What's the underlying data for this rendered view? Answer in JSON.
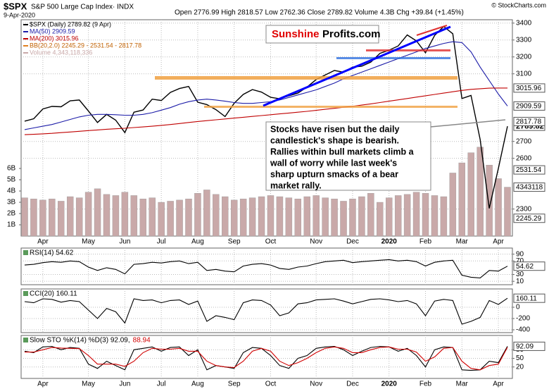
{
  "header": {
    "symbol": "$SPX",
    "name": "S&P 500 Large Cap Index· INDX",
    "date": "9-Apr-2020",
    "quote": "Open 2776.99 High 2818.57 Low 2762.36 Close 2789.82 Volume 4.3B Chg +39.84 (+1.45%)",
    "copyright": "© StockCharts.com",
    "watermark_a": "Sunshine",
    "watermark_b": "Profits.com",
    "volume_box": "4343118",
    "annotation": [
      "Stocks have risen but the daily",
      "candlestick's shape is bearish.",
      "Rallies within bull markets climb a",
      "wall of worry while last week's",
      "sharp upturn smacks of a bear",
      "market rally."
    ]
  },
  "chart_data": [
    {
      "type": "line",
      "categories": [
        null,
        null,
        "Apr",
        null,
        null,
        null,
        null,
        "May",
        null,
        null,
        null,
        "Jun",
        null,
        null,
        null,
        "Jul",
        null,
        null,
        null,
        "Aug",
        null,
        null,
        null,
        "Sep",
        null,
        null,
        null,
        "Oct",
        null,
        null,
        null,
        null,
        "Nov",
        null,
        null,
        null,
        "Dec",
        null,
        null,
        null,
        "2020",
        null,
        null,
        null,
        "Feb",
        null,
        null,
        null,
        "Mar",
        null,
        null,
        null,
        "Apr",
        null
      ],
      "ylim": [
        2140,
        3420
      ],
      "yticks": [
        3400,
        3300,
        3200,
        3100,
        2700,
        2600,
        2300
      ],
      "y2lim": [
        0,
        19.2
      ],
      "y2ticks": [
        {
          "value": 1,
          "label": "1B"
        },
        {
          "value": 2,
          "label": "2B"
        },
        {
          "value": 3,
          "label": "3B"
        },
        {
          "value": 4,
          "label": "4B"
        },
        {
          "value": 5,
          "label": "5B"
        },
        {
          "value": 6,
          "label": "6B"
        }
      ],
      "grid": true,
      "bb_label": "BB(20,2.0) 2245.29 - 2531.54 - 2817.78",
      "bb": {
        "upper": 2817.78,
        "middle": 2531.54,
        "lower": 2245.29
      },
      "series": [
        {
          "name": "Volume 4,343,118,336",
          "type": "bar",
          "axis": "y2",
          "color": "#c9a9a9",
          "values": [
            3.4,
            3.3,
            3.2,
            3.3,
            3.1,
            3.5,
            3.4,
            3.9,
            4.2,
            3.7,
            3.6,
            3.9,
            3.6,
            3.3,
            3.4,
            3.0,
            3.1,
            3.2,
            3.3,
            3.8,
            4.1,
            3.7,
            3.5,
            3.2,
            3.3,
            3.4,
            3.5,
            3.6,
            3.5,
            3.4,
            3.3,
            3.5,
            3.6,
            3.4,
            3.3,
            3.1,
            3.3,
            3.5,
            3.8,
            3.0,
            3.4,
            3.6,
            3.7,
            3.9,
            3.8,
            3.6,
            3.5,
            5.6,
            6.5,
            7.4,
            7.9,
            6.3,
            5.1,
            4.343118336
          ]
        },
        {
          "name": "$SPX (Daily) 2789.82 (9 Apr)",
          "color": "#000000",
          "values": [
            2820,
            2834,
            2892,
            2907,
            2905,
            2940,
            2945,
            2880,
            2812,
            2860,
            2826,
            2752,
            2873,
            2886,
            2950,
            2942,
            2990,
            3013,
            3025,
            2932,
            2918,
            2888,
            2847,
            2926,
            2978,
            3007,
            2992,
            2961,
            2952,
            2970,
            2986,
            3022,
            3066,
            3093,
            3120,
            3110,
            3140,
            3145,
            3169,
            3221,
            3240,
            3265,
            3330,
            3295,
            3225,
            3327,
            3380,
            3337,
            2954,
            2972,
            2711,
            2304,
            2541,
            2789.82
          ]
        },
        {
          "name": "MA(50) 2909.59",
          "color": "#1c1ca8",
          "values": [
            2770,
            2780,
            2790,
            2800,
            2815,
            2830,
            2845,
            2855,
            2860,
            2860,
            2858,
            2855,
            2855,
            2860,
            2870,
            2885,
            2900,
            2920,
            2935,
            2945,
            2950,
            2945,
            2938,
            2930,
            2925,
            2925,
            2930,
            2935,
            2945,
            2960,
            2975,
            2990,
            3005,
            3025,
            3045,
            3070,
            3090,
            3110,
            3130,
            3150,
            3170,
            3190,
            3210,
            3230,
            3250,
            3265,
            3280,
            3290,
            3285,
            3230,
            3140,
            3060,
            2980,
            2909.59
          ]
        },
        {
          "name": "MA(200) 3015.96",
          "color": "#c00000",
          "values": [
            2740,
            2742,
            2745,
            2748,
            2752,
            2756,
            2760,
            2764,
            2768,
            2772,
            2775,
            2778,
            2782,
            2786,
            2790,
            2795,
            2800,
            2806,
            2812,
            2818,
            2823,
            2828,
            2833,
            2838,
            2843,
            2848,
            2853,
            2858,
            2863,
            2868,
            2873,
            2878,
            2884,
            2890,
            2896,
            2902,
            2908,
            2915,
            2922,
            2930,
            2938,
            2946,
            2954,
            2962,
            2970,
            2978,
            2986,
            2994,
            3002,
            3008,
            3012,
            3015,
            3016,
            3015.96
          ]
        }
      ]
    },
    {
      "type": "line",
      "ylim": [
        0,
        108
      ],
      "yticks": [
        90,
        70,
        30,
        10
      ],
      "grid": true,
      "series": [
        {
          "name": "RSI(14) 54.62",
          "color": "#000000",
          "values": [
            58,
            60,
            65,
            68,
            66,
            70,
            68,
            52,
            42,
            50,
            45,
            32,
            60,
            62,
            66,
            64,
            68,
            70,
            62,
            66,
            42,
            45,
            40,
            38,
            55,
            60,
            62,
            58,
            48,
            45,
            52,
            55,
            62,
            68,
            70,
            72,
            65,
            68,
            70,
            72,
            74,
            70,
            72,
            68,
            55,
            66,
            70,
            72,
            28,
            22,
            20,
            42,
            40,
            54.62
          ]
        }
      ]
    },
    {
      "type": "line",
      "ylim": [
        -450,
        325
      ],
      "yticks": [
        0,
        -200,
        -400
      ],
      "grid": true,
      "series": [
        {
          "name": "CCI(20) 160.11",
          "color": "#000000",
          "values": [
            100,
            80,
            150,
            140,
            90,
            120,
            100,
            -50,
            -200,
            -20,
            -80,
            -280,
            150,
            120,
            130,
            80,
            120,
            130,
            50,
            110,
            -250,
            -150,
            -180,
            -220,
            80,
            130,
            120,
            40,
            -150,
            -100,
            60,
            80,
            130,
            140,
            150,
            110,
            60,
            100,
            140,
            150,
            130,
            100,
            120,
            60,
            -150,
            110,
            140,
            120,
            -300,
            -250,
            -180,
            120,
            50,
            160.11
          ]
        }
      ]
    },
    {
      "type": "line",
      "ylim": [
        -20,
        130
      ],
      "yticks": [
        80,
        50,
        20
      ],
      "grid": true,
      "series": [
        {
          "name": "Slow STO %K(14) %D(3) 92.09,",
          "color": "#000000",
          "values": [
            75,
            70,
            90,
            92,
            80,
            88,
            85,
            30,
            15,
            40,
            25,
            10,
            80,
            85,
            90,
            75,
            88,
            90,
            60,
            80,
            10,
            25,
            20,
            15,
            70,
            88,
            85,
            60,
            25,
            15,
            50,
            60,
            85,
            90,
            92,
            80,
            60,
            75,
            88,
            92,
            90,
            75,
            85,
            60,
            20,
            80,
            90,
            88,
            10,
            8,
            10,
            40,
            35,
            92.09
          ]
        },
        {
          "name": "88.94",
          "color": "#d00000",
          "values": [
            72,
            72,
            80,
            88,
            86,
            85,
            84,
            60,
            30,
            30,
            30,
            22,
            40,
            70,
            85,
            82,
            82,
            85,
            75,
            75,
            40,
            25,
            20,
            18,
            40,
            75,
            85,
            75,
            40,
            25,
            35,
            50,
            70,
            85,
            90,
            85,
            70,
            70,
            80,
            88,
            90,
            82,
            82,
            72,
            40,
            55,
            85,
            88,
            40,
            15,
            10,
            25,
            30,
            88.94
          ]
        }
      ]
    }
  ]
}
